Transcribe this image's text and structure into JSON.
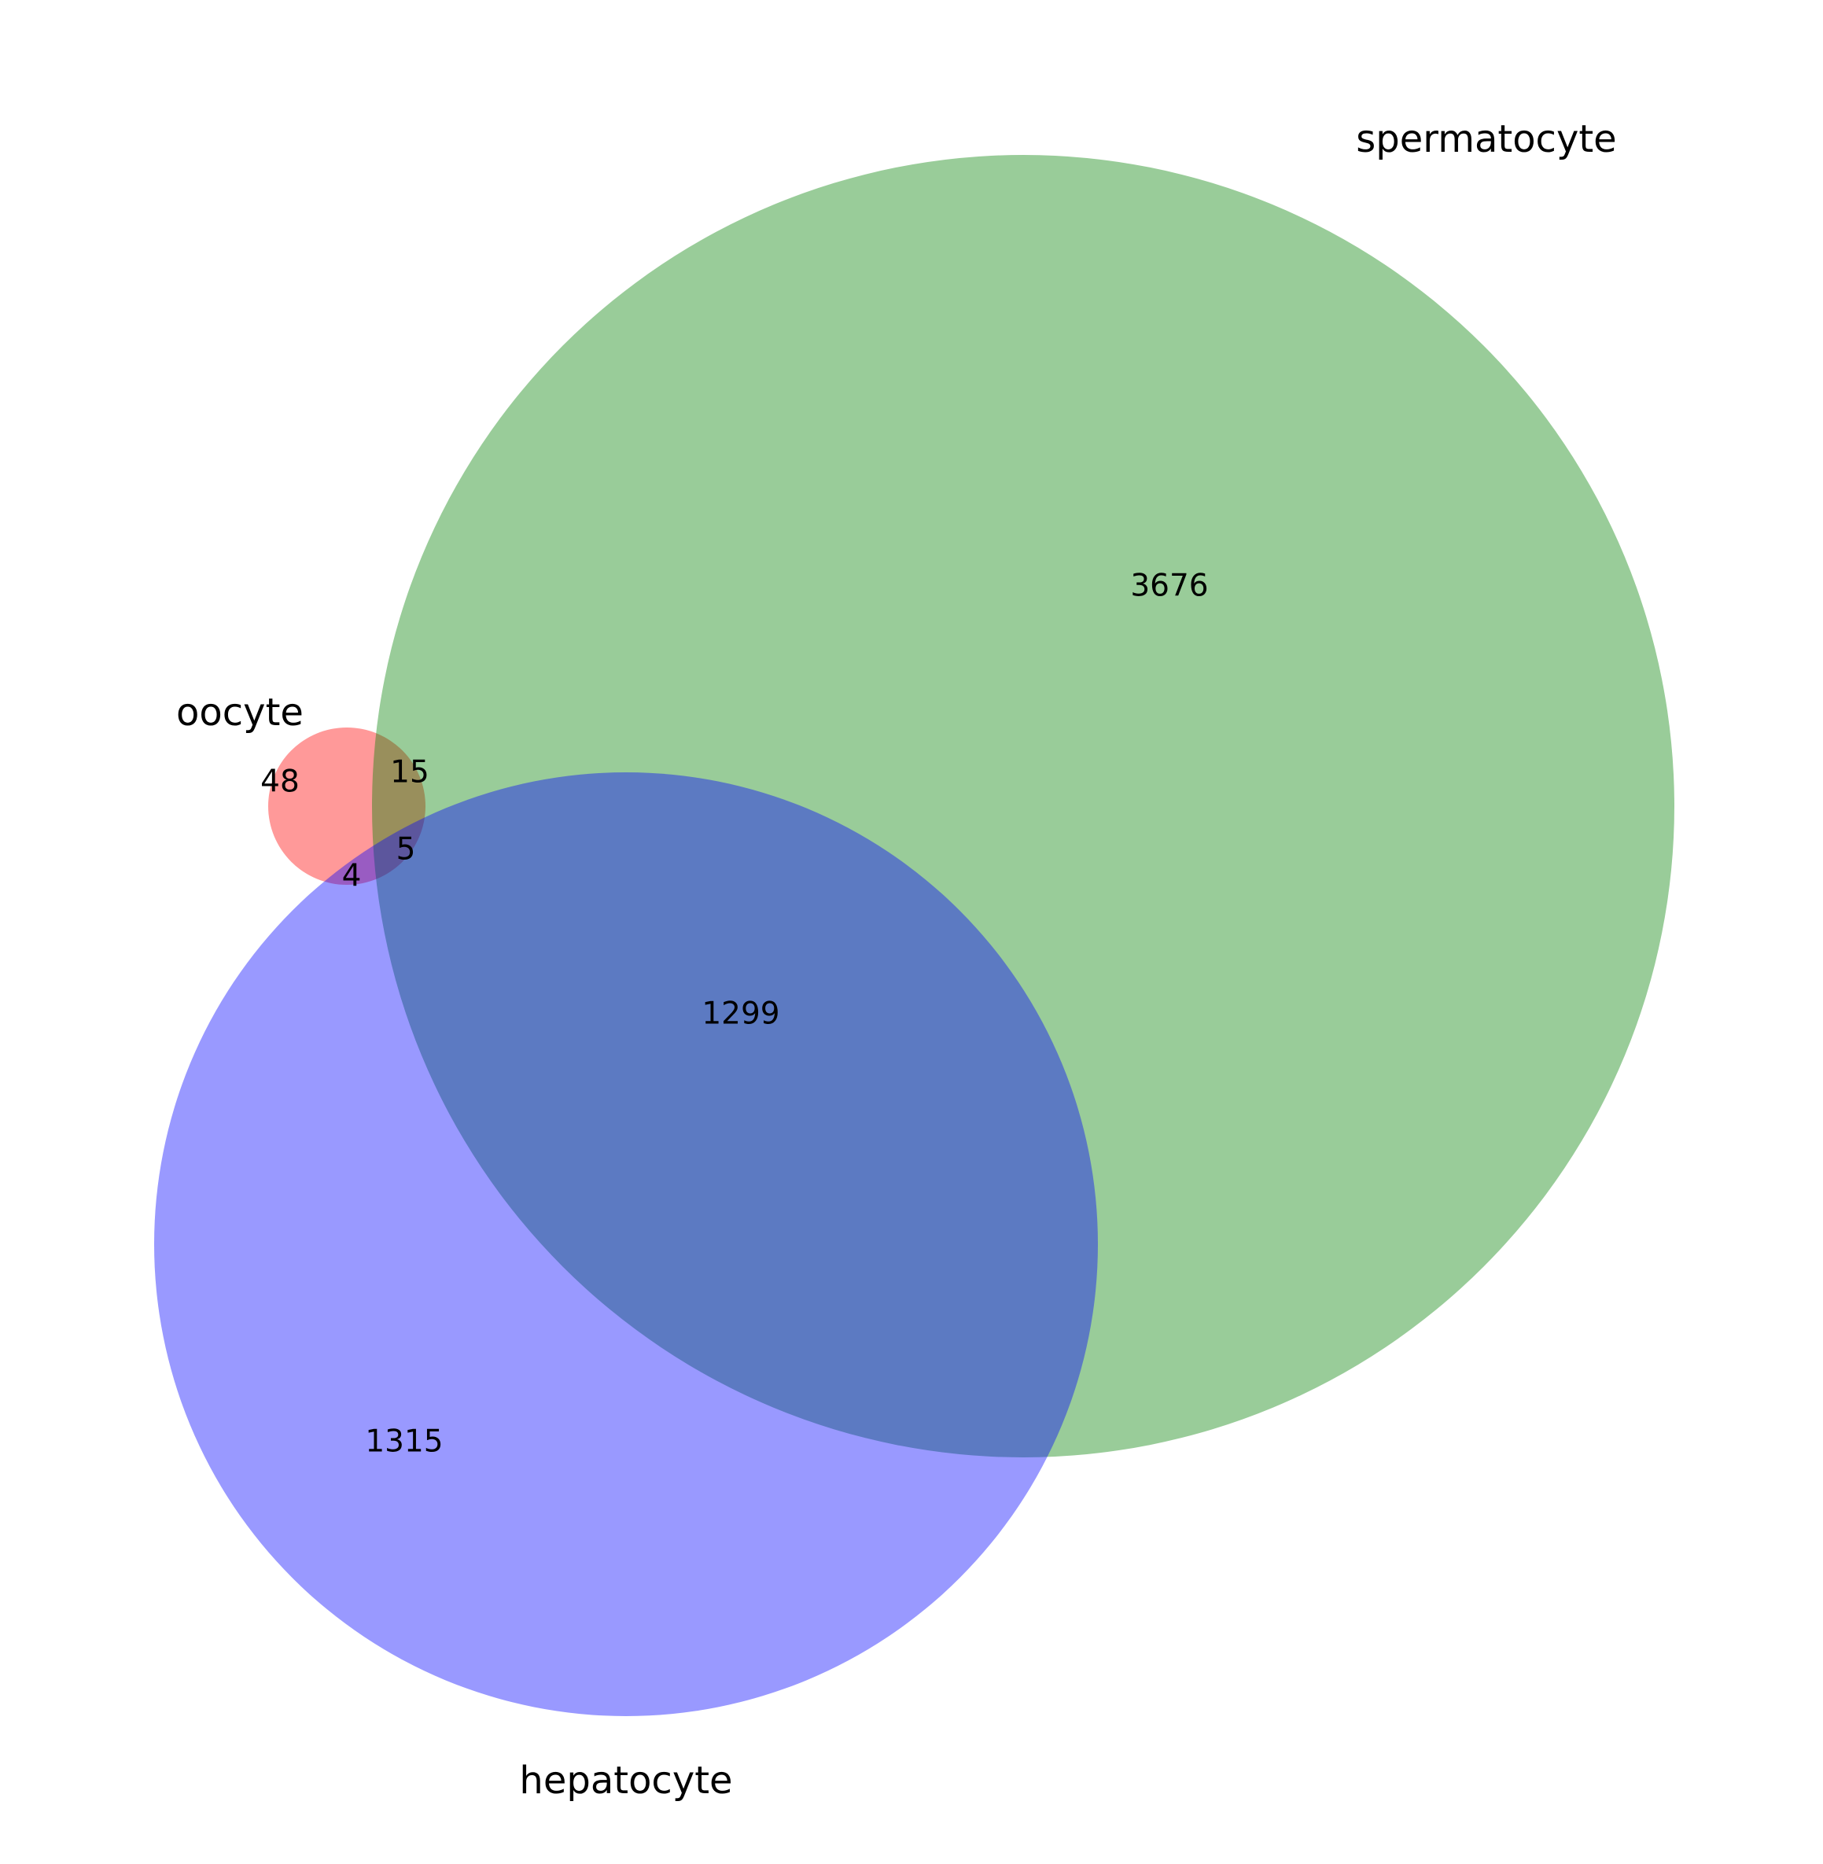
{
  "diagram": {
    "type": "venn3",
    "sets": [
      {
        "id": "A",
        "label": "oocyte",
        "color": "#ff0000"
      },
      {
        "id": "B",
        "label": "spermatocyte",
        "color": "#008000"
      },
      {
        "id": "C",
        "label": "hepatocyte",
        "color": "#0000ff"
      }
    ],
    "regions": {
      "A_only": "48",
      "AB_only": "15",
      "ABC": "5",
      "AC_only": "4",
      "B_only": "3676",
      "BC_only": "1299",
      "C_only": "1315"
    },
    "fill_opacity": 0.4
  }
}
